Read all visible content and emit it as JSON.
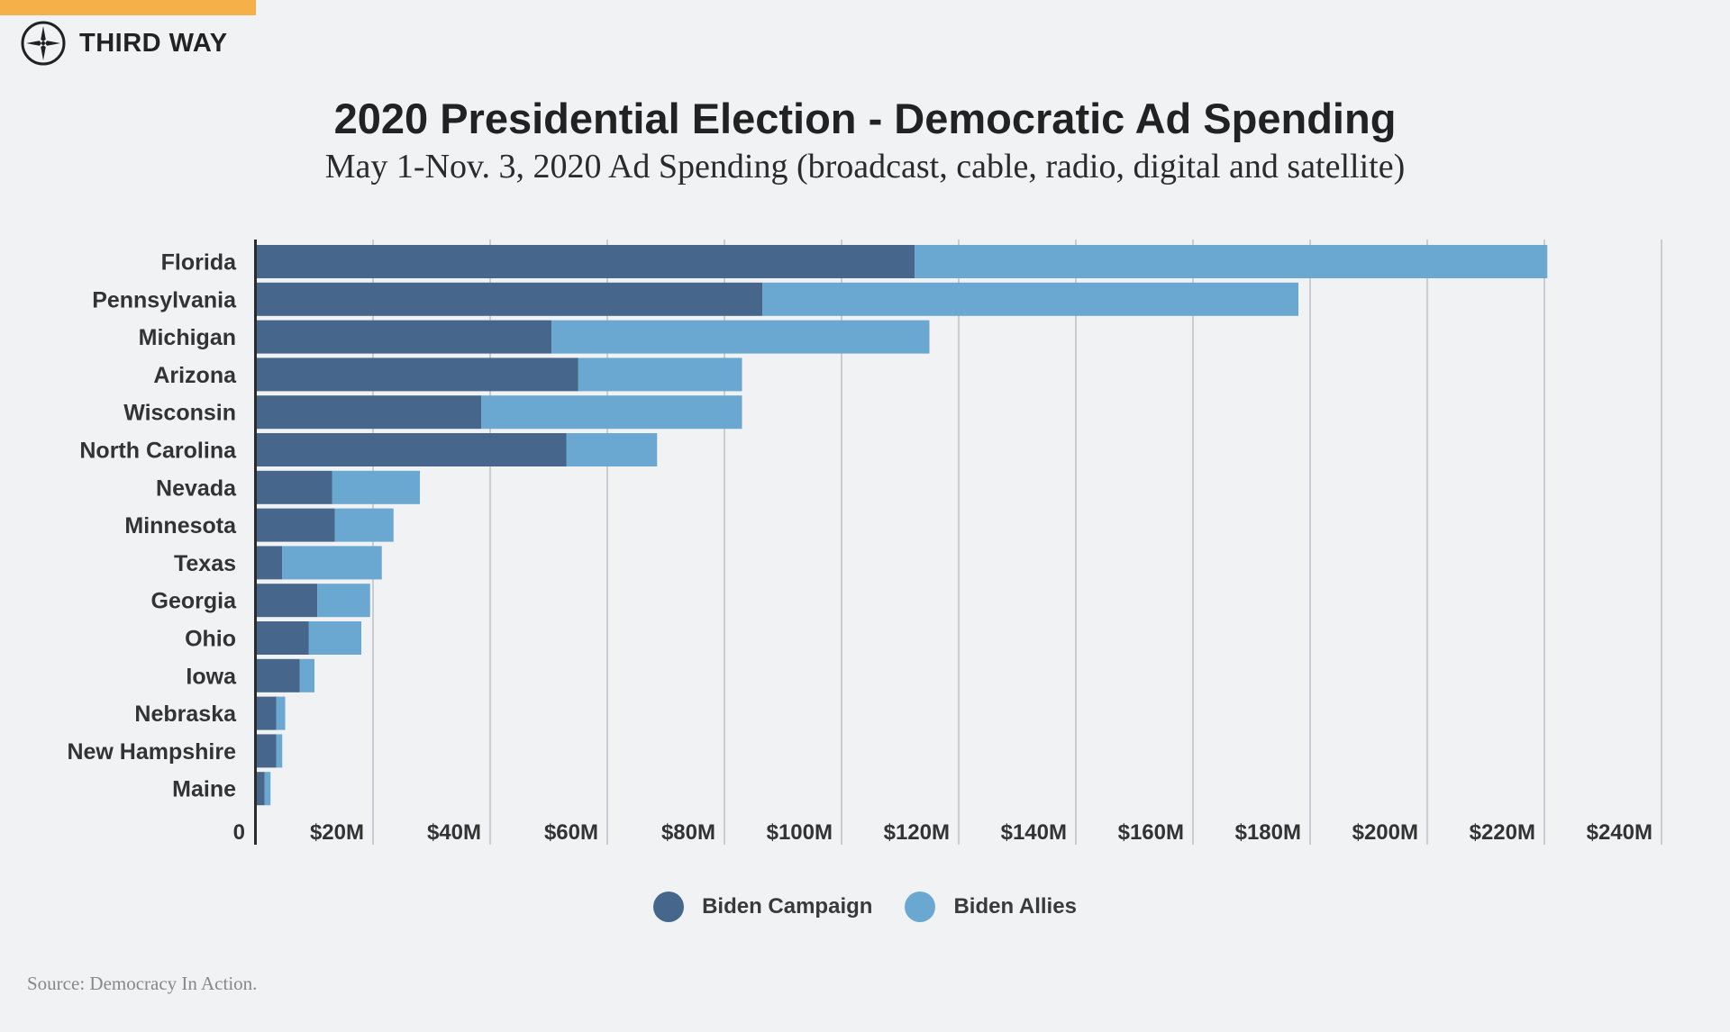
{
  "brand": {
    "name": "THIRD WAY",
    "logo_icon": "compass-star-icon",
    "accent_color": "#f5b04a"
  },
  "header": {
    "title": "2020 Presidential Election - Democratic Ad Spending",
    "subtitle": "May 1-Nov. 3, 2020 Ad Spending (broadcast, cable, radio, digital and satellite)"
  },
  "chart_data": {
    "type": "bar",
    "orientation": "horizontal",
    "stacked": true,
    "categories": [
      "Florida",
      "Pennsylvania",
      "Michigan",
      "Arizona",
      "Wisconsin",
      "North Carolina",
      "Nevada",
      "Minnesota",
      "Texas",
      "Georgia",
      "Ohio",
      "Iowa",
      "Nebraska",
      "New Hampshire",
      "Maine"
    ],
    "series": [
      {
        "name": "Biden Campaign",
        "color": "#47668c",
        "values": [
          112.5,
          86.5,
          50.5,
          55,
          38.5,
          53,
          13,
          13.5,
          4.5,
          10.5,
          9,
          7.5,
          3.5,
          3.5,
          1.5
        ]
      },
      {
        "name": "Biden Allies",
        "color": "#6aa8d1",
        "values": [
          108,
          91.5,
          64.5,
          28,
          44.5,
          15.5,
          15,
          10,
          17,
          9,
          9,
          2.5,
          1.5,
          1,
          1
        ]
      }
    ],
    "x_ticks": [
      "0",
      "$20M",
      "$40M",
      "$60M",
      "$80M",
      "$100M",
      "$120M",
      "$140M",
      "$160M",
      "$180M",
      "$200M",
      "$220M",
      "$240M"
    ],
    "xlim": [
      0,
      240
    ],
    "x_unit": "$M",
    "grid": true,
    "legend_position": "bottom-center"
  },
  "footer": {
    "source": "Source: Democracy In Action."
  }
}
